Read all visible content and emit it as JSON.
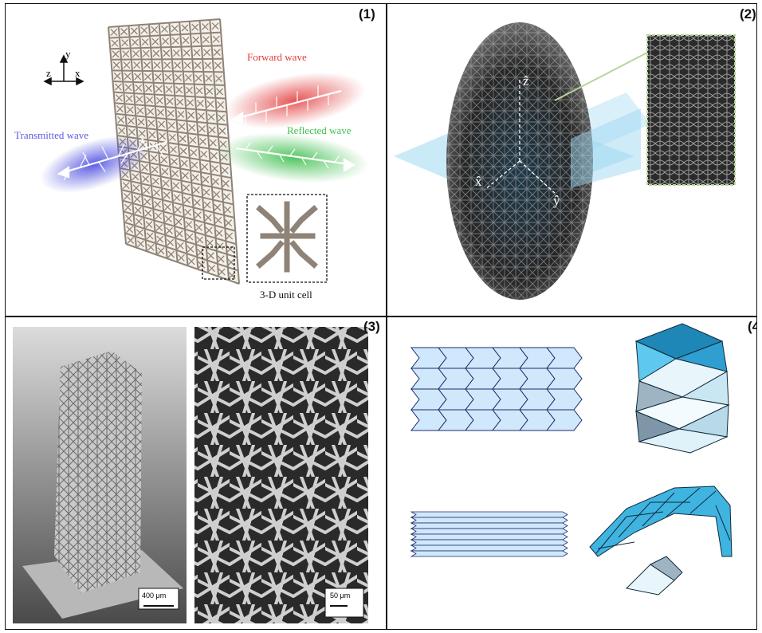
{
  "panels": {
    "p1": {
      "label": "(1)",
      "axes": {
        "y": "y",
        "z": "z",
        "x": "x"
      },
      "forward_wave": "Forward wave",
      "transmitted_wave": "Transmitted wave",
      "reflected_wave": "Reflected wave",
      "unit_cell_caption": "3-D unit cell",
      "colors": {
        "forward": "#e23b3b",
        "transmitted": "#4b4be0",
        "reflected": "#3fbf4f",
        "lattice": "#8f8377"
      }
    },
    "p2": {
      "label": "(2)",
      "axes": {
        "z": "ẑ",
        "x": "x̂",
        "y": "ŷ"
      },
      "colors": {
        "lattice": "#3a3a3a",
        "plane": "#9fd8f2",
        "inset_border": "#b7d59a"
      }
    },
    "p3": {
      "label": "(3)",
      "scale_left": "400 μm",
      "scale_right": "50 μm"
    },
    "p4": {
      "label": "(4)",
      "colors": {
        "pattern_fill": "#cfe8fb",
        "pattern_line": "#1f2a6b",
        "folded": "#3fb4e0"
      }
    }
  }
}
